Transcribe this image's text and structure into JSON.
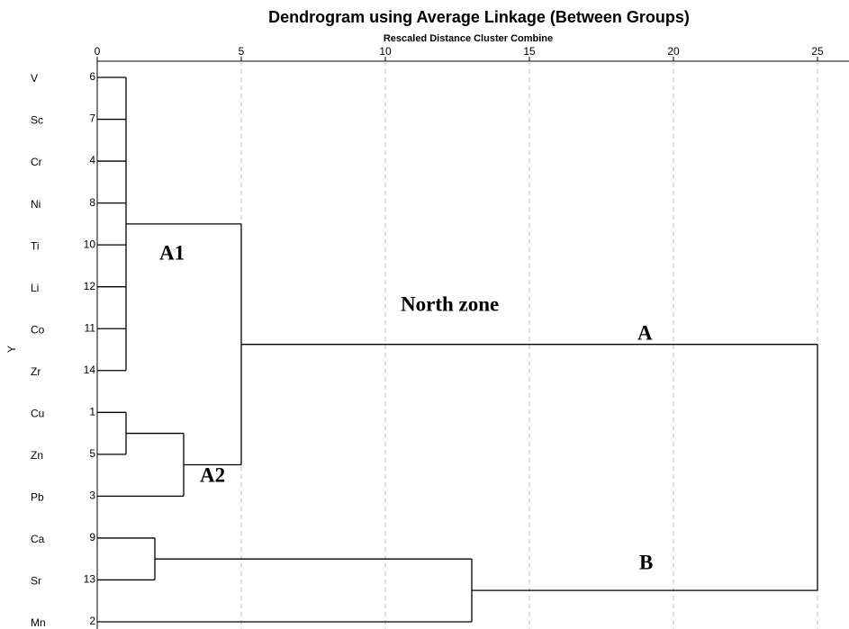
{
  "chart_data": {
    "type": "dendrogram",
    "title": "Dendrogram using Average Linkage (Between Groups)",
    "subtitle": "Rescaled Distance Cluster Combine",
    "y_label": "Y",
    "xlim": [
      0,
      26
    ],
    "xticks": [
      0,
      5,
      10,
      15,
      20,
      25
    ],
    "grid": true,
    "leaves": [
      {
        "name": "V",
        "case": 6
      },
      {
        "name": "Sc",
        "case": 7
      },
      {
        "name": "Cr",
        "case": 4
      },
      {
        "name": "Ni",
        "case": 8
      },
      {
        "name": "Ti",
        "case": 10
      },
      {
        "name": "Li",
        "case": 12
      },
      {
        "name": "Co",
        "case": 11
      },
      {
        "name": "Zr",
        "case": 14
      },
      {
        "name": "Cu",
        "case": 1
      },
      {
        "name": "Zn",
        "case": 5
      },
      {
        "name": "Pb",
        "case": 3
      },
      {
        "name": "Ca",
        "case": 9
      },
      {
        "name": "Sr",
        "case": 13
      },
      {
        "name": "Mn",
        "case": 2
      }
    ],
    "merges": [
      {
        "children": [
          0,
          1,
          2,
          3,
          4,
          5,
          6,
          7
        ],
        "distance": 1
      },
      {
        "children": [
          8,
          9
        ],
        "distance": 1
      },
      {
        "children": [
          15,
          10
        ],
        "distance": 3
      },
      {
        "children": [
          11,
          12
        ],
        "distance": 2
      },
      {
        "children": [
          14,
          16
        ],
        "distance": 5
      },
      {
        "children": [
          17,
          13
        ],
        "distance": 13
      },
      {
        "children": [
          18,
          19
        ],
        "distance": 25
      }
    ],
    "annotations": [
      "A1",
      "North zone",
      "A",
      "A2",
      "B"
    ]
  }
}
